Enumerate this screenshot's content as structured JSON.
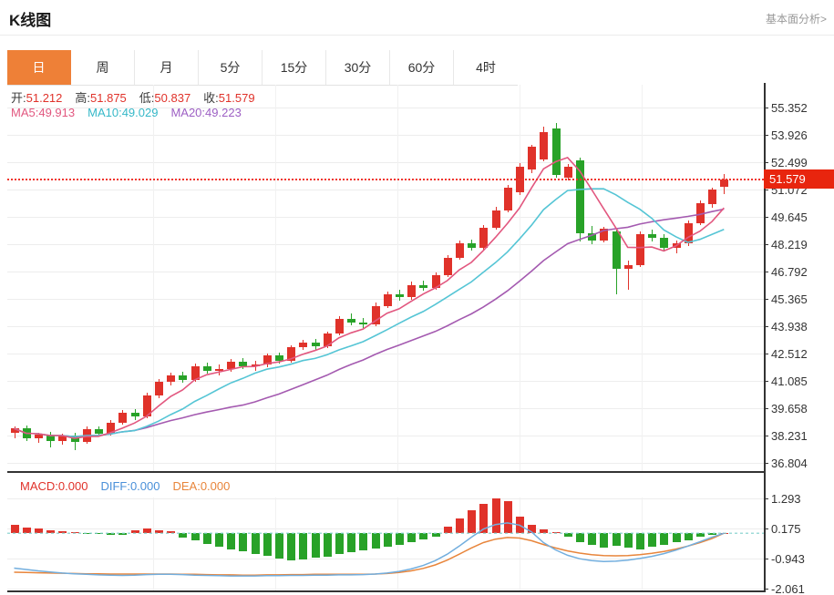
{
  "header": {
    "title": "K线图",
    "link": "基本面分析>"
  },
  "tabs": [
    {
      "label": "日",
      "active": true
    },
    {
      "label": "周",
      "active": false
    },
    {
      "label": "月",
      "active": false
    },
    {
      "label": "5分",
      "active": false
    },
    {
      "label": "15分",
      "active": false
    },
    {
      "label": "30分",
      "active": false
    },
    {
      "label": "60分",
      "active": false
    },
    {
      "label": "4时",
      "active": false
    }
  ],
  "ohlc_info": [
    {
      "label": "开:",
      "value": "51.212"
    },
    {
      "label": "高:",
      "value": "51.875"
    },
    {
      "label": "低:",
      "value": "50.837"
    },
    {
      "label": "收:",
      "value": "51.579"
    }
  ],
  "ma_info": [
    {
      "label": "MA5:",
      "value": "49.913",
      "color": "#e2577f"
    },
    {
      "label": "MA10:",
      "value": "49.029",
      "color": "#35b8c8"
    },
    {
      "label": "MA20:",
      "value": "49.223",
      "color": "#9d5fc4"
    }
  ],
  "macd_info": [
    {
      "label": "MACD:",
      "value": "0.000",
      "color": "#e0322a"
    },
    {
      "label": "DIFF:",
      "value": "0.000",
      "color": "#4a90d9"
    },
    {
      "label": "DEA:",
      "value": "0.000",
      "color": "#e8853b"
    }
  ],
  "price_axis": {
    "labels": [
      "55.352",
      "53.926",
      "52.499",
      "51.072",
      "49.645",
      "48.219",
      "46.792",
      "45.365",
      "43.938",
      "42.512",
      "41.085",
      "39.658",
      "38.231",
      "36.804"
    ],
    "last_price_label": "51.579"
  },
  "macd_axis": {
    "labels": [
      "1.293",
      "0.175",
      "-0.943",
      "-2.061"
    ]
  },
  "colors": {
    "up": "#e0322a",
    "down": "#28a228",
    "ma5": "#e2577f",
    "ma10": "#55c5d5",
    "ma20": "#a45ab0",
    "diff_line": "#72aede",
    "dea_line": "#e8853b",
    "price_line": "#f0342b",
    "badge": "#e8250e",
    "zero_dash": "#7fcfcb",
    "tab_active": "#ee8037"
  },
  "chart_data": [
    {
      "type": "candlestick",
      "title": "K线图 日",
      "y_ticks": [
        55.352,
        53.926,
        52.499,
        51.072,
        49.645,
        48.219,
        46.792,
        45.365,
        43.938,
        42.512,
        41.085,
        39.658,
        38.231,
        36.804
      ],
      "last_price": 51.579,
      "overlays": [
        "MA5",
        "MA10",
        "MA20"
      ],
      "legend": {
        "MA5": 49.913,
        "MA10": 49.029,
        "MA20": 49.223
      },
      "ohlc": {
        "open": 51.212,
        "high": 51.875,
        "low": 50.837,
        "close": 51.579
      },
      "up_means": "rise(red)",
      "down_means": "fall(green)",
      "candles": [
        [
          38.35,
          38.7,
          38.1,
          38.6
        ],
        [
          38.6,
          38.75,
          37.95,
          38.1
        ],
        [
          38.1,
          38.35,
          37.85,
          38.28
        ],
        [
          38.28,
          38.4,
          37.6,
          37.95
        ],
        [
          37.95,
          38.32,
          37.75,
          38.22
        ],
        [
          38.22,
          38.35,
          37.48,
          37.9
        ],
        [
          37.9,
          38.72,
          37.8,
          38.55
        ],
        [
          38.55,
          38.7,
          38.18,
          38.32
        ],
        [
          38.32,
          39.02,
          38.22,
          38.9
        ],
        [
          38.9,
          39.58,
          38.8,
          39.42
        ],
        [
          39.42,
          39.6,
          39.02,
          39.22
        ],
        [
          39.22,
          40.45,
          39.12,
          40.3
        ],
        [
          40.3,
          41.18,
          40.2,
          41.02
        ],
        [
          41.02,
          41.52,
          40.85,
          41.36
        ],
        [
          41.36,
          41.55,
          41.0,
          41.15
        ],
        [
          41.15,
          41.97,
          41.05,
          41.85
        ],
        [
          41.85,
          42.02,
          41.48,
          41.63
        ],
        [
          41.63,
          41.92,
          41.35,
          41.72
        ],
        [
          41.72,
          42.22,
          41.55,
          42.06
        ],
        [
          42.06,
          42.26,
          41.68,
          41.84
        ],
        [
          41.84,
          42.12,
          41.6,
          41.92
        ],
        [
          41.92,
          42.52,
          41.8,
          42.4
        ],
        [
          42.4,
          42.56,
          42.0,
          42.14
        ],
        [
          42.14,
          42.96,
          42.04,
          42.85
        ],
        [
          42.85,
          43.22,
          42.7,
          43.06
        ],
        [
          43.06,
          43.26,
          42.68,
          42.9
        ],
        [
          42.9,
          43.66,
          42.8,
          43.56
        ],
        [
          43.56,
          44.46,
          43.46,
          44.3
        ],
        [
          44.3,
          44.62,
          44.0,
          44.14
        ],
        [
          44.14,
          44.36,
          43.84,
          44.04
        ],
        [
          44.04,
          45.16,
          43.94,
          45.0
        ],
        [
          45.0,
          45.76,
          44.9,
          45.6
        ],
        [
          45.6,
          45.82,
          45.28,
          45.44
        ],
        [
          45.44,
          46.26,
          45.34,
          46.1
        ],
        [
          46.1,
          46.3,
          45.78,
          45.94
        ],
        [
          45.94,
          46.76,
          45.84,
          46.6
        ],
        [
          46.6,
          47.66,
          46.5,
          47.5
        ],
        [
          47.5,
          48.42,
          47.4,
          48.25
        ],
        [
          48.25,
          48.46,
          47.88,
          48.04
        ],
        [
          48.04,
          49.22,
          47.94,
          49.06
        ],
        [
          49.06,
          50.16,
          48.96,
          50.0
        ],
        [
          50.0,
          51.3,
          49.88,
          51.15
        ],
        [
          50.95,
          52.45,
          50.8,
          52.25
        ],
        [
          52.1,
          53.42,
          51.95,
          53.3
        ],
        [
          52.65,
          54.35,
          52.55,
          54.05
        ],
        [
          54.28,
          54.52,
          51.7,
          51.85
        ],
        [
          51.68,
          52.4,
          51.55,
          52.25
        ],
        [
          52.6,
          52.72,
          48.35,
          48.8
        ],
        [
          48.78,
          49.15,
          48.2,
          48.4
        ],
        [
          48.42,
          49.12,
          48.3,
          49.05
        ],
        [
          48.9,
          49.02,
          45.6,
          46.92
        ],
        [
          46.92,
          47.35,
          45.85,
          47.12
        ],
        [
          47.12,
          48.88,
          47.02,
          48.72
        ],
        [
          48.72,
          48.96,
          48.38,
          48.54
        ],
        [
          48.54,
          48.72,
          47.88,
          48.02
        ],
        [
          48.02,
          48.4,
          47.75,
          48.25
        ],
        [
          48.25,
          49.45,
          48.1,
          49.32
        ],
        [
          49.32,
          50.48,
          49.2,
          50.35
        ],
        [
          50.3,
          51.15,
          50.12,
          51.05
        ],
        [
          51.212,
          51.875,
          50.837,
          51.579
        ]
      ]
    },
    {
      "type": "bar",
      "title": "MACD",
      "y_ticks": [
        1.293,
        0.175,
        -0.943,
        -2.061
      ],
      "legend": {
        "MACD": 0.0,
        "DIFF": 0.0,
        "DEA": 0.0
      },
      "hist": [
        0.3,
        0.22,
        0.16,
        0.12,
        0.07,
        0.03,
        -0.02,
        -0.04,
        -0.05,
        -0.07,
        0.1,
        0.16,
        0.12,
        0.06,
        -0.15,
        -0.28,
        -0.4,
        -0.5,
        -0.6,
        -0.68,
        -0.76,
        -0.85,
        -0.95,
        -1.02,
        -0.98,
        -0.92,
        -0.86,
        -0.78,
        -0.72,
        -0.65,
        -0.58,
        -0.5,
        -0.42,
        -0.32,
        -0.22,
        -0.12,
        0.25,
        0.55,
        0.85,
        1.1,
        1.29,
        1.18,
        0.62,
        0.32,
        0.14,
        0.05,
        -0.14,
        -0.32,
        -0.45,
        -0.52,
        -0.48,
        -0.55,
        -0.62,
        -0.5,
        -0.44,
        -0.34,
        -0.25,
        -0.14,
        -0.05,
        0.0
      ],
      "diff": [
        -1.3,
        -1.35,
        -1.4,
        -1.44,
        -1.48,
        -1.51,
        -1.53,
        -1.55,
        -1.56,
        -1.57,
        -1.56,
        -1.54,
        -1.53,
        -1.53,
        -1.54,
        -1.56,
        -1.57,
        -1.58,
        -1.59,
        -1.59,
        -1.59,
        -1.58,
        -1.58,
        -1.57,
        -1.57,
        -1.56,
        -1.56,
        -1.55,
        -1.55,
        -1.54,
        -1.52,
        -1.48,
        -1.42,
        -1.33,
        -1.2,
        -1.02,
        -0.78,
        -0.48,
        -0.15,
        0.15,
        0.32,
        0.38,
        0.3,
        0.05,
        -0.35,
        -0.62,
        -0.82,
        -0.95,
        -1.02,
        -1.05,
        -1.04,
        -1.0,
        -0.94,
        -0.86,
        -0.76,
        -0.63,
        -0.48,
        -0.32,
        -0.15,
        0.0
      ],
      "dea": [
        -1.45,
        -1.46,
        -1.47,
        -1.48,
        -1.49,
        -1.5,
        -1.51,
        -1.51,
        -1.52,
        -1.52,
        -1.52,
        -1.52,
        -1.52,
        -1.52,
        -1.53,
        -1.53,
        -1.54,
        -1.55,
        -1.55,
        -1.56,
        -1.56,
        -1.55,
        -1.55,
        -1.54,
        -1.54,
        -1.53,
        -1.53,
        -1.53,
        -1.53,
        -1.53,
        -1.52,
        -1.5,
        -1.46,
        -1.4,
        -1.31,
        -1.18,
        -1.0,
        -0.78,
        -0.55,
        -0.35,
        -0.22,
        -0.16,
        -0.18,
        -0.28,
        -0.42,
        -0.55,
        -0.66,
        -0.74,
        -0.8,
        -0.83,
        -0.84,
        -0.83,
        -0.8,
        -0.75,
        -0.68,
        -0.59,
        -0.48,
        -0.35,
        -0.2,
        0.0
      ]
    }
  ]
}
